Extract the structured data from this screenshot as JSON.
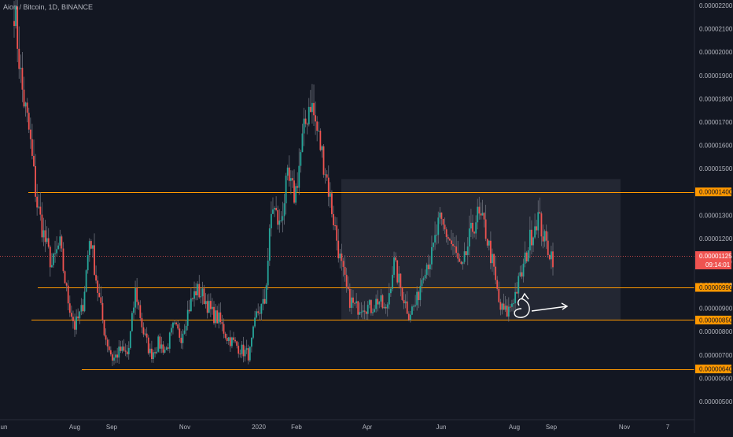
{
  "header": {
    "symbol_title": "Aion / Bitcoin, 1D, BINANCE"
  },
  "colors": {
    "background": "#131722",
    "axis_text": "#b2b5be",
    "up_candle": "#26a69a",
    "down_candle": "#ef5350",
    "level_line": "#ff9800",
    "level_label_bg": "#ff9800",
    "price_label_bg": "#ef5350",
    "range_box": "#2a2e39",
    "annotation": "#ffffff"
  },
  "chart_data": {
    "type": "candlestick",
    "title": "Aion / Bitcoin, 1D, BINANCE",
    "ylim": [
      4.5e-06,
      2.2e-06
    ],
    "y_ticks": [
      "0.00000500",
      "0.00000600",
      "0.00000700",
      "0.00000800",
      "0.00000900",
      "0.00001000",
      "0.00001100",
      "0.00001200",
      "0.00001300",
      "0.00001400",
      "0.00001500",
      "0.00001600",
      "0.00001700",
      "0.00001800",
      "0.00001900",
      "0.00002000",
      "0.00002100",
      "0.00002200"
    ],
    "x_ticks": [
      "Jun",
      "Aug",
      "Sep",
      "Nov",
      "2020",
      "Feb",
      "Apr",
      "Jun",
      "Aug",
      "Sep",
      "Nov",
      "7"
    ],
    "grid": false,
    "horizontal_levels": [
      {
        "price": 1.4e-05,
        "label": "0.00001400",
        "highlighted": true
      },
      {
        "price": 9.9e-06,
        "label": "0.00000990",
        "highlighted": true
      },
      {
        "price": 8.5e-06,
        "label": "0.00000850",
        "highlighted": true
      },
      {
        "price": 6.4e-06,
        "label": "0.00000640",
        "highlighted": true
      }
    ],
    "last_price": {
      "value": "0.00001125",
      "countdown": "09:14:01"
    },
    "range_box": {
      "from": "Mar",
      "to": "Oct",
      "top": 1.455e-05,
      "bottom": 8.5e-06
    },
    "price_path": [
      [
        "Jun",
        2.2e-05
      ],
      [
        "Jun",
        1.85e-05
      ],
      [
        "Jun",
        1.65e-05
      ],
      [
        "Jun",
        1.35e-05
      ],
      [
        "Jul",
        1.2e-05
      ],
      [
        "Jul",
        1.08e-05
      ],
      [
        "Jul",
        1.18e-05
      ],
      [
        "Jul",
        9.5e-06
      ],
      [
        "Jul",
        8.2e-06
      ],
      [
        "Jul",
        9e-06
      ],
      [
        "Aug",
        1.22e-05
      ],
      [
        "Aug",
        9.8e-06
      ],
      [
        "Aug",
        7.8e-06
      ],
      [
        "Aug",
        6.8e-06
      ],
      [
        "Aug",
        7.2e-06
      ],
      [
        "Sep",
        7e-06
      ],
      [
        "Sep",
        9.8e-06
      ],
      [
        "Sep",
        8e-06
      ],
      [
        "Sep",
        7e-06
      ],
      [
        "Oct",
        7.5e-06
      ],
      [
        "Oct",
        7.2e-06
      ],
      [
        "Oct",
        8.2e-06
      ],
      [
        "Oct",
        7.8e-06
      ],
      [
        "Nov",
        9e-06
      ],
      [
        "Nov",
        9.8e-06
      ],
      [
        "Nov",
        9.5e-06
      ],
      [
        "Nov",
        8.8e-06
      ],
      [
        "Dec",
        8.5e-06
      ],
      [
        "Dec",
        7.8e-06
      ],
      [
        "Dec",
        7.5e-06
      ],
      [
        "Dec",
        7.2e-06
      ],
      [
        "2020",
        7e-06
      ],
      [
        "2020",
        8.8e-06
      ],
      [
        "2020",
        9.2e-06
      ],
      [
        "Feb",
        1.35e-05
      ],
      [
        "Feb",
        1.25e-05
      ],
      [
        "Feb",
        1.45e-05
      ],
      [
        "Feb",
        1.38e-05
      ],
      [
        "Feb",
        1.62e-05
      ],
      [
        "Feb",
        1.8e-05
      ],
      [
        "Mar",
        1.65e-05
      ],
      [
        "Mar",
        1.5e-05
      ],
      [
        "Mar",
        1.3e-05
      ],
      [
        "Mar",
        1.1e-05
      ],
      [
        "Mar",
        9.5e-06
      ],
      [
        "Mar",
        9e-06
      ],
      [
        "Apr",
        9.2e-06
      ],
      [
        "Apr",
        9e-06
      ],
      [
        "Apr",
        9.4e-06
      ],
      [
        "Apr",
        8.8e-06
      ],
      [
        "May",
        1.1e-05
      ],
      [
        "May",
        9.8e-06
      ],
      [
        "May",
        8.8e-06
      ],
      [
        "May",
        9.2e-06
      ],
      [
        "Jun",
        1.08e-05
      ],
      [
        "Jun",
        1.12e-05
      ],
      [
        "Jun",
        1.27e-05
      ],
      [
        "Jun",
        1.22e-05
      ],
      [
        "Jul",
        1.15e-05
      ],
      [
        "Jul",
        1.05e-05
      ],
      [
        "Jul",
        1.2e-05
      ],
      [
        "Jul",
        1.3e-05
      ],
      [
        "Jul",
        1.25e-05
      ],
      [
        "Aug",
        1.1e-05
      ],
      [
        "Aug",
        9e-06
      ],
      [
        "Aug",
        8.8e-06
      ],
      [
        "Aug",
        9.6e-06
      ],
      [
        "Aug",
        1.06e-05
      ],
      [
        "Aug",
        1.2e-05
      ],
      [
        "Aug",
        1.3e-05
      ],
      [
        "Sep",
        1.18e-05
      ],
      [
        "Sep",
        1.12e-05
      ]
    ]
  }
}
